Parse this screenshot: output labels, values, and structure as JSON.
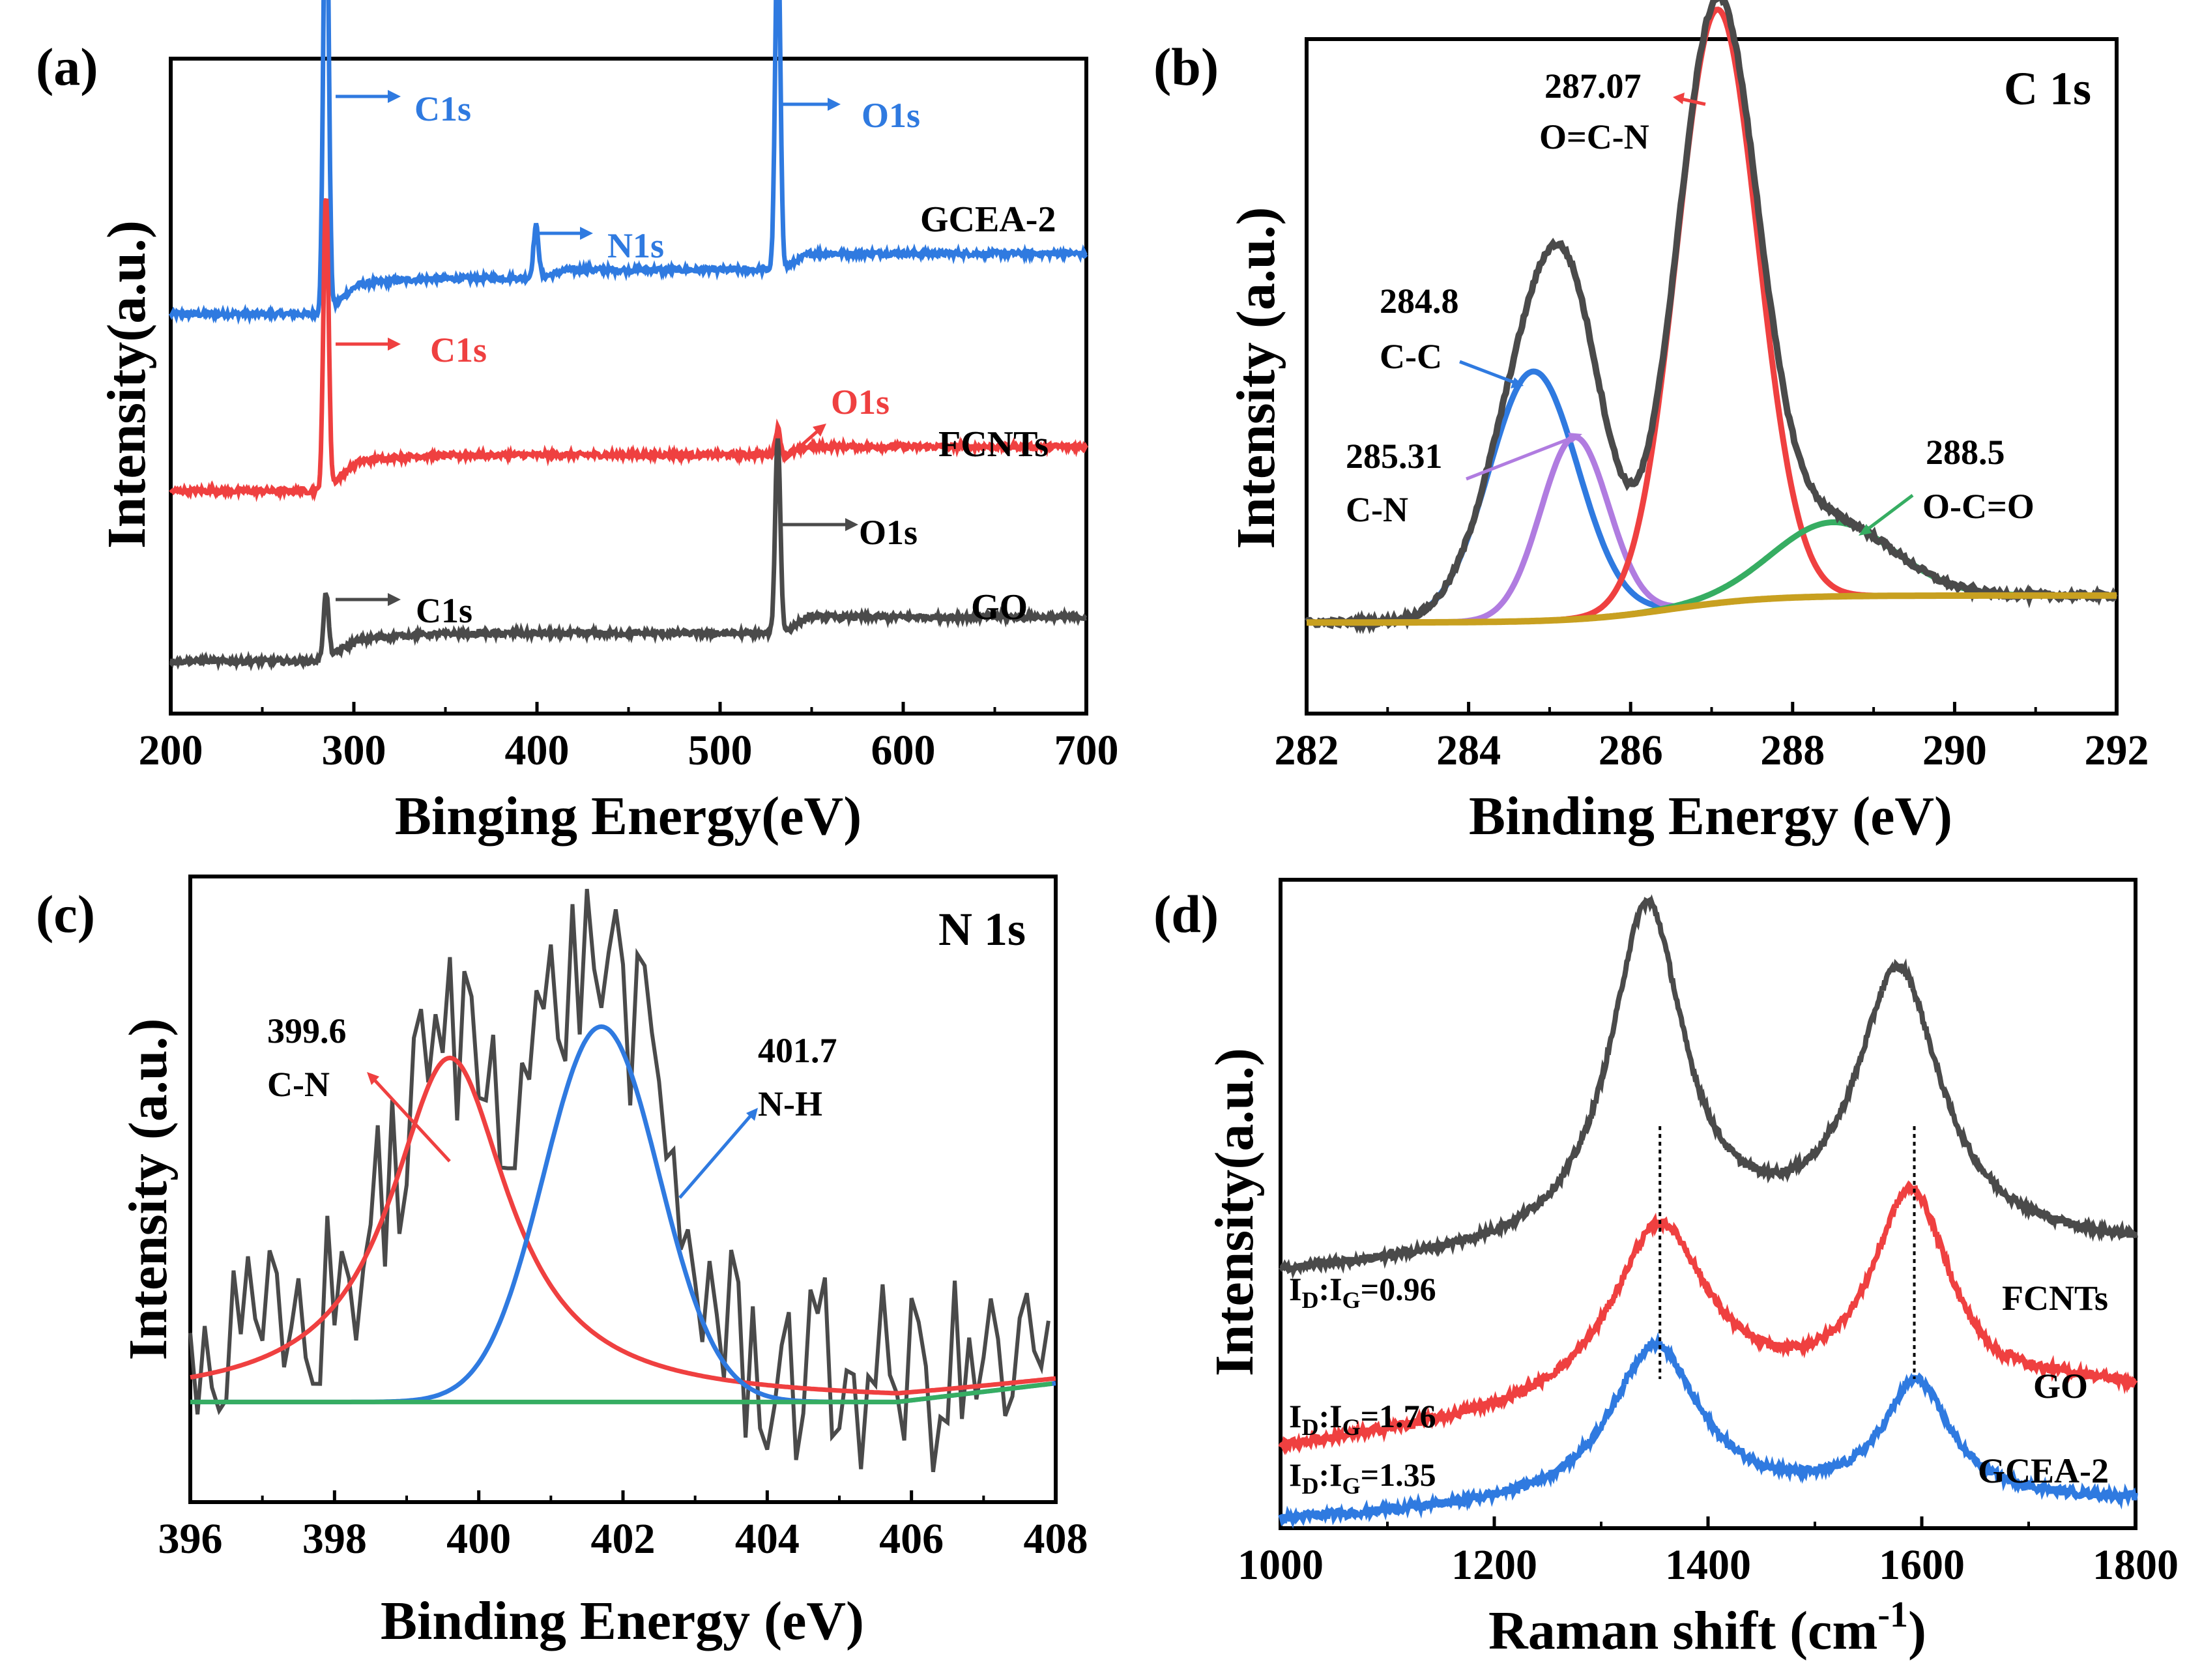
{
  "colors": {
    "gray": "#4a4a4a",
    "red": "#ef4040",
    "blue": "#2f7ae0",
    "purple": "#b07ce0",
    "green": "#36ad62",
    "gold": "#c8a020",
    "axis": "#000000"
  },
  "chart_data": [
    {
      "panel_label": "(a)",
      "type": "line",
      "title": "",
      "xlabel": "Binging Energy(eV)",
      "ylabel": "Intensity(a.u.)",
      "xlim": [
        200,
        700
      ],
      "xticks": [
        200,
        300,
        400,
        500,
        600,
        700
      ],
      "y_ticks_shown": false,
      "series": [
        {
          "name": "GCEA-2",
          "color": "#2f7ae0",
          "baseline": 0.61,
          "peaks": [
            {
              "x": 284.8,
              "h": 0.74
            },
            {
              "x": 399.5,
              "h": 0.08
            },
            {
              "x": 531.5,
              "h": 0.53
            }
          ],
          "annotations": [
            "C1s",
            "N1s",
            "O1s"
          ]
        },
        {
          "name": "FCNTs",
          "color": "#ef4040",
          "baseline": 0.34,
          "peaks": [
            {
              "x": 284.8,
              "h": 0.45
            },
            {
              "x": 531.5,
              "h": 0.04
            }
          ],
          "annotations": [
            "C1s",
            "O1s"
          ]
        },
        {
          "name": "GO",
          "color": "#4a4a4a",
          "baseline": 0.08,
          "peaks": [
            {
              "x": 284.8,
              "h": 0.1
            },
            {
              "x": 531.5,
              "h": 0.3
            }
          ],
          "annotations": [
            "C1s",
            "O1s"
          ]
        }
      ]
    },
    {
      "panel_label": "(b)",
      "type": "line",
      "title": "C 1s",
      "xlabel": "Binding Energy (eV)",
      "ylabel": "Intensity (a.u.)",
      "xlim": [
        282,
        292
      ],
      "xticks": [
        282,
        284,
        286,
        288,
        290,
        292
      ],
      "y_ticks_shown": false,
      "components": [
        {
          "center": 284.8,
          "label": "C-C",
          "color": "#2f7ae0",
          "height": 0.37
        },
        {
          "center": 285.31,
          "label": "C-N",
          "color": "#b07ce0",
          "height": 0.27
        },
        {
          "center": 287.07,
          "label": "O=C-N",
          "color": "#ef4040",
          "height": 0.88
        },
        {
          "center": 288.5,
          "label": "O-C=O",
          "color": "#36ad62",
          "height": 0.11
        }
      ],
      "envelope_color": "#4a4a4a",
      "background_color": "#c8a020",
      "annotations": [
        {
          "value": "287.07",
          "label": "O=C-N"
        },
        {
          "value": "284.8",
          "label": "C-C"
        },
        {
          "value": "285.31",
          "label": "C-N"
        },
        {
          "value": "288.5",
          "label": "O-C=O"
        }
      ]
    },
    {
      "panel_label": "(c)",
      "type": "line",
      "title": "N 1s",
      "xlabel": "Binding Energy (eV)",
      "ylabel": "Intensity (a.u.)",
      "xlim": [
        396,
        408
      ],
      "xticks": [
        396,
        398,
        400,
        402,
        404,
        406,
        408
      ],
      "y_ticks_shown": false,
      "components": [
        {
          "center": 399.6,
          "label": "C-N",
          "color": "#ef4040",
          "height": 0.55
        },
        {
          "center": 401.7,
          "label": "N-H",
          "color": "#2f7ae0",
          "height": 0.6
        }
      ],
      "raw_color": "#4a4a4a",
      "background_color": "#36ad62",
      "annotations": [
        {
          "value": "399.6",
          "label": "C-N"
        },
        {
          "value": "401.7",
          "label": "N-H"
        }
      ]
    },
    {
      "panel_label": "(d)",
      "type": "line",
      "title": "",
      "xlabel": "Raman shift (cm",
      "xlabel_sup": "-1",
      "xlabel_end": ")",
      "ylabel": "Intensity(a.u.)",
      "xlim": [
        1000,
        1800
      ],
      "xticks": [
        1000,
        1200,
        1400,
        1600,
        1800
      ],
      "y_ticks_shown": false,
      "d_band": 1355,
      "g_band": 1593,
      "series": [
        {
          "name": "FCNTs",
          "color": "#4a4a4a",
          "ratio_label": "I",
          "ratio_sub1": "D",
          "ratio_mid": ":I",
          "ratio_sub2": "G",
          "ratio_value": "=0.96"
        },
        {
          "name": "GO",
          "color": "#ef4040",
          "ratio_label": "I",
          "ratio_sub1": "D",
          "ratio_mid": ":I",
          "ratio_sub2": "G",
          "ratio_value": "=1.76"
        },
        {
          "name": "GCEA-2",
          "color": "#2f7ae0",
          "ratio_label": "I",
          "ratio_sub1": "D",
          "ratio_mid": ":I",
          "ratio_sub2": "G",
          "ratio_value": "=1.35"
        }
      ]
    }
  ]
}
